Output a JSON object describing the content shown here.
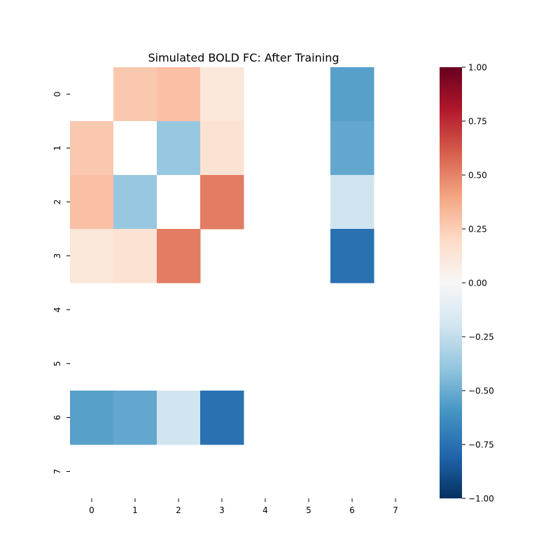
{
  "chart_data": {
    "type": "heatmap",
    "title": "Simulated BOLD FC: After Training",
    "xlabel": "",
    "ylabel": "",
    "x_tick_labels": [
      "0",
      "1",
      "2",
      "3",
      "4",
      "5",
      "6",
      "7"
    ],
    "y_tick_labels": [
      "0",
      "1",
      "2",
      "3",
      "4",
      "5",
      "6",
      "7"
    ],
    "values": [
      [
        null,
        0.27,
        0.3,
        0.12,
        null,
        null,
        -0.55,
        null
      ],
      [
        0.27,
        0.0,
        -0.38,
        0.15,
        null,
        null,
        -0.52,
        null
      ],
      [
        0.3,
        -0.38,
        0.0,
        0.52,
        null,
        null,
        -0.2,
        null
      ],
      [
        0.12,
        0.15,
        0.52,
        null,
        null,
        null,
        -0.75,
        null
      ],
      [
        null,
        null,
        null,
        null,
        null,
        null,
        null,
        null
      ],
      [
        null,
        null,
        null,
        null,
        null,
        null,
        null,
        null
      ],
      [
        -0.55,
        -0.52,
        -0.2,
        -0.75,
        null,
        null,
        null,
        null
      ],
      [
        null,
        null,
        null,
        null,
        null,
        null,
        null,
        null
      ]
    ],
    "colorbar": {
      "colormap": "RdBu_r",
      "range": [
        -1.0,
        1.0
      ],
      "tick_labels": [
        "1.00",
        "0.75",
        "0.50",
        "0.25",
        "0.00",
        "−0.25",
        "−0.50",
        "−0.75",
        "−1.00"
      ],
      "tick_values": [
        1.0,
        0.75,
        0.5,
        0.25,
        0.0,
        -0.25,
        -0.5,
        -0.75,
        -1.0
      ]
    },
    "grid": false
  }
}
